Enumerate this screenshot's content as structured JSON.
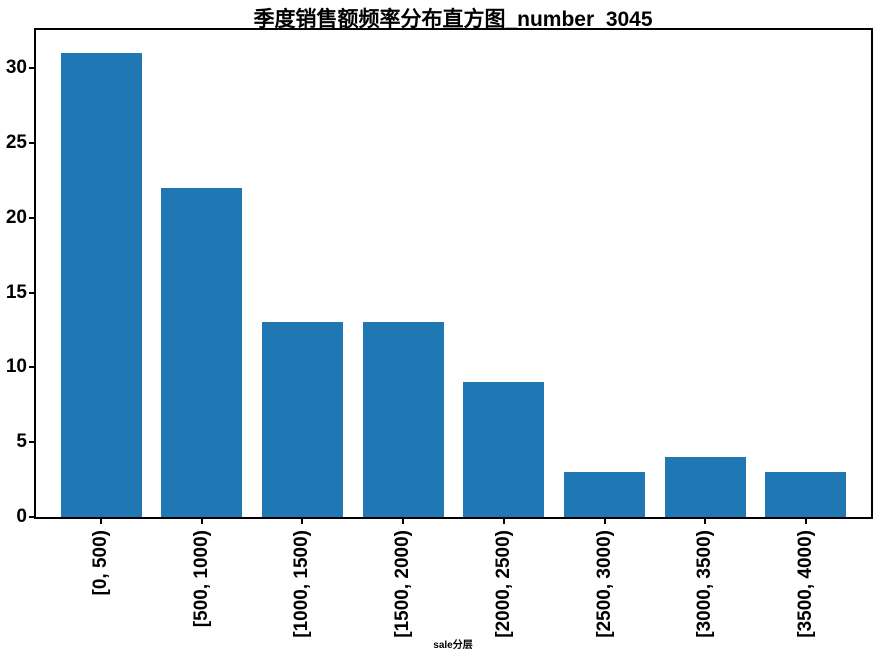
{
  "chart_data": {
    "type": "bar",
    "title": "季度销售额频率分布直方图_number  3045",
    "categories": [
      "[0, 500)",
      "[500, 1000)",
      "[1000, 1500)",
      "[1500, 2000)",
      "[2000, 2500)",
      "[2500, 3000)",
      "[3000, 3500)",
      "[3500, 4000)"
    ],
    "values": [
      31,
      22,
      13,
      13,
      9,
      3,
      4,
      3
    ],
    "xlabel": "sale分层",
    "ylabel": "",
    "yticks": [
      0,
      5,
      10,
      15,
      20,
      25,
      30
    ],
    "ylim": [
      0,
      32.55
    ],
    "xtick_rotation": 90,
    "bar_color": "#1f77b4",
    "spine_color": "#000000",
    "background": "#ffffff",
    "grid": false,
    "legend": false
  }
}
